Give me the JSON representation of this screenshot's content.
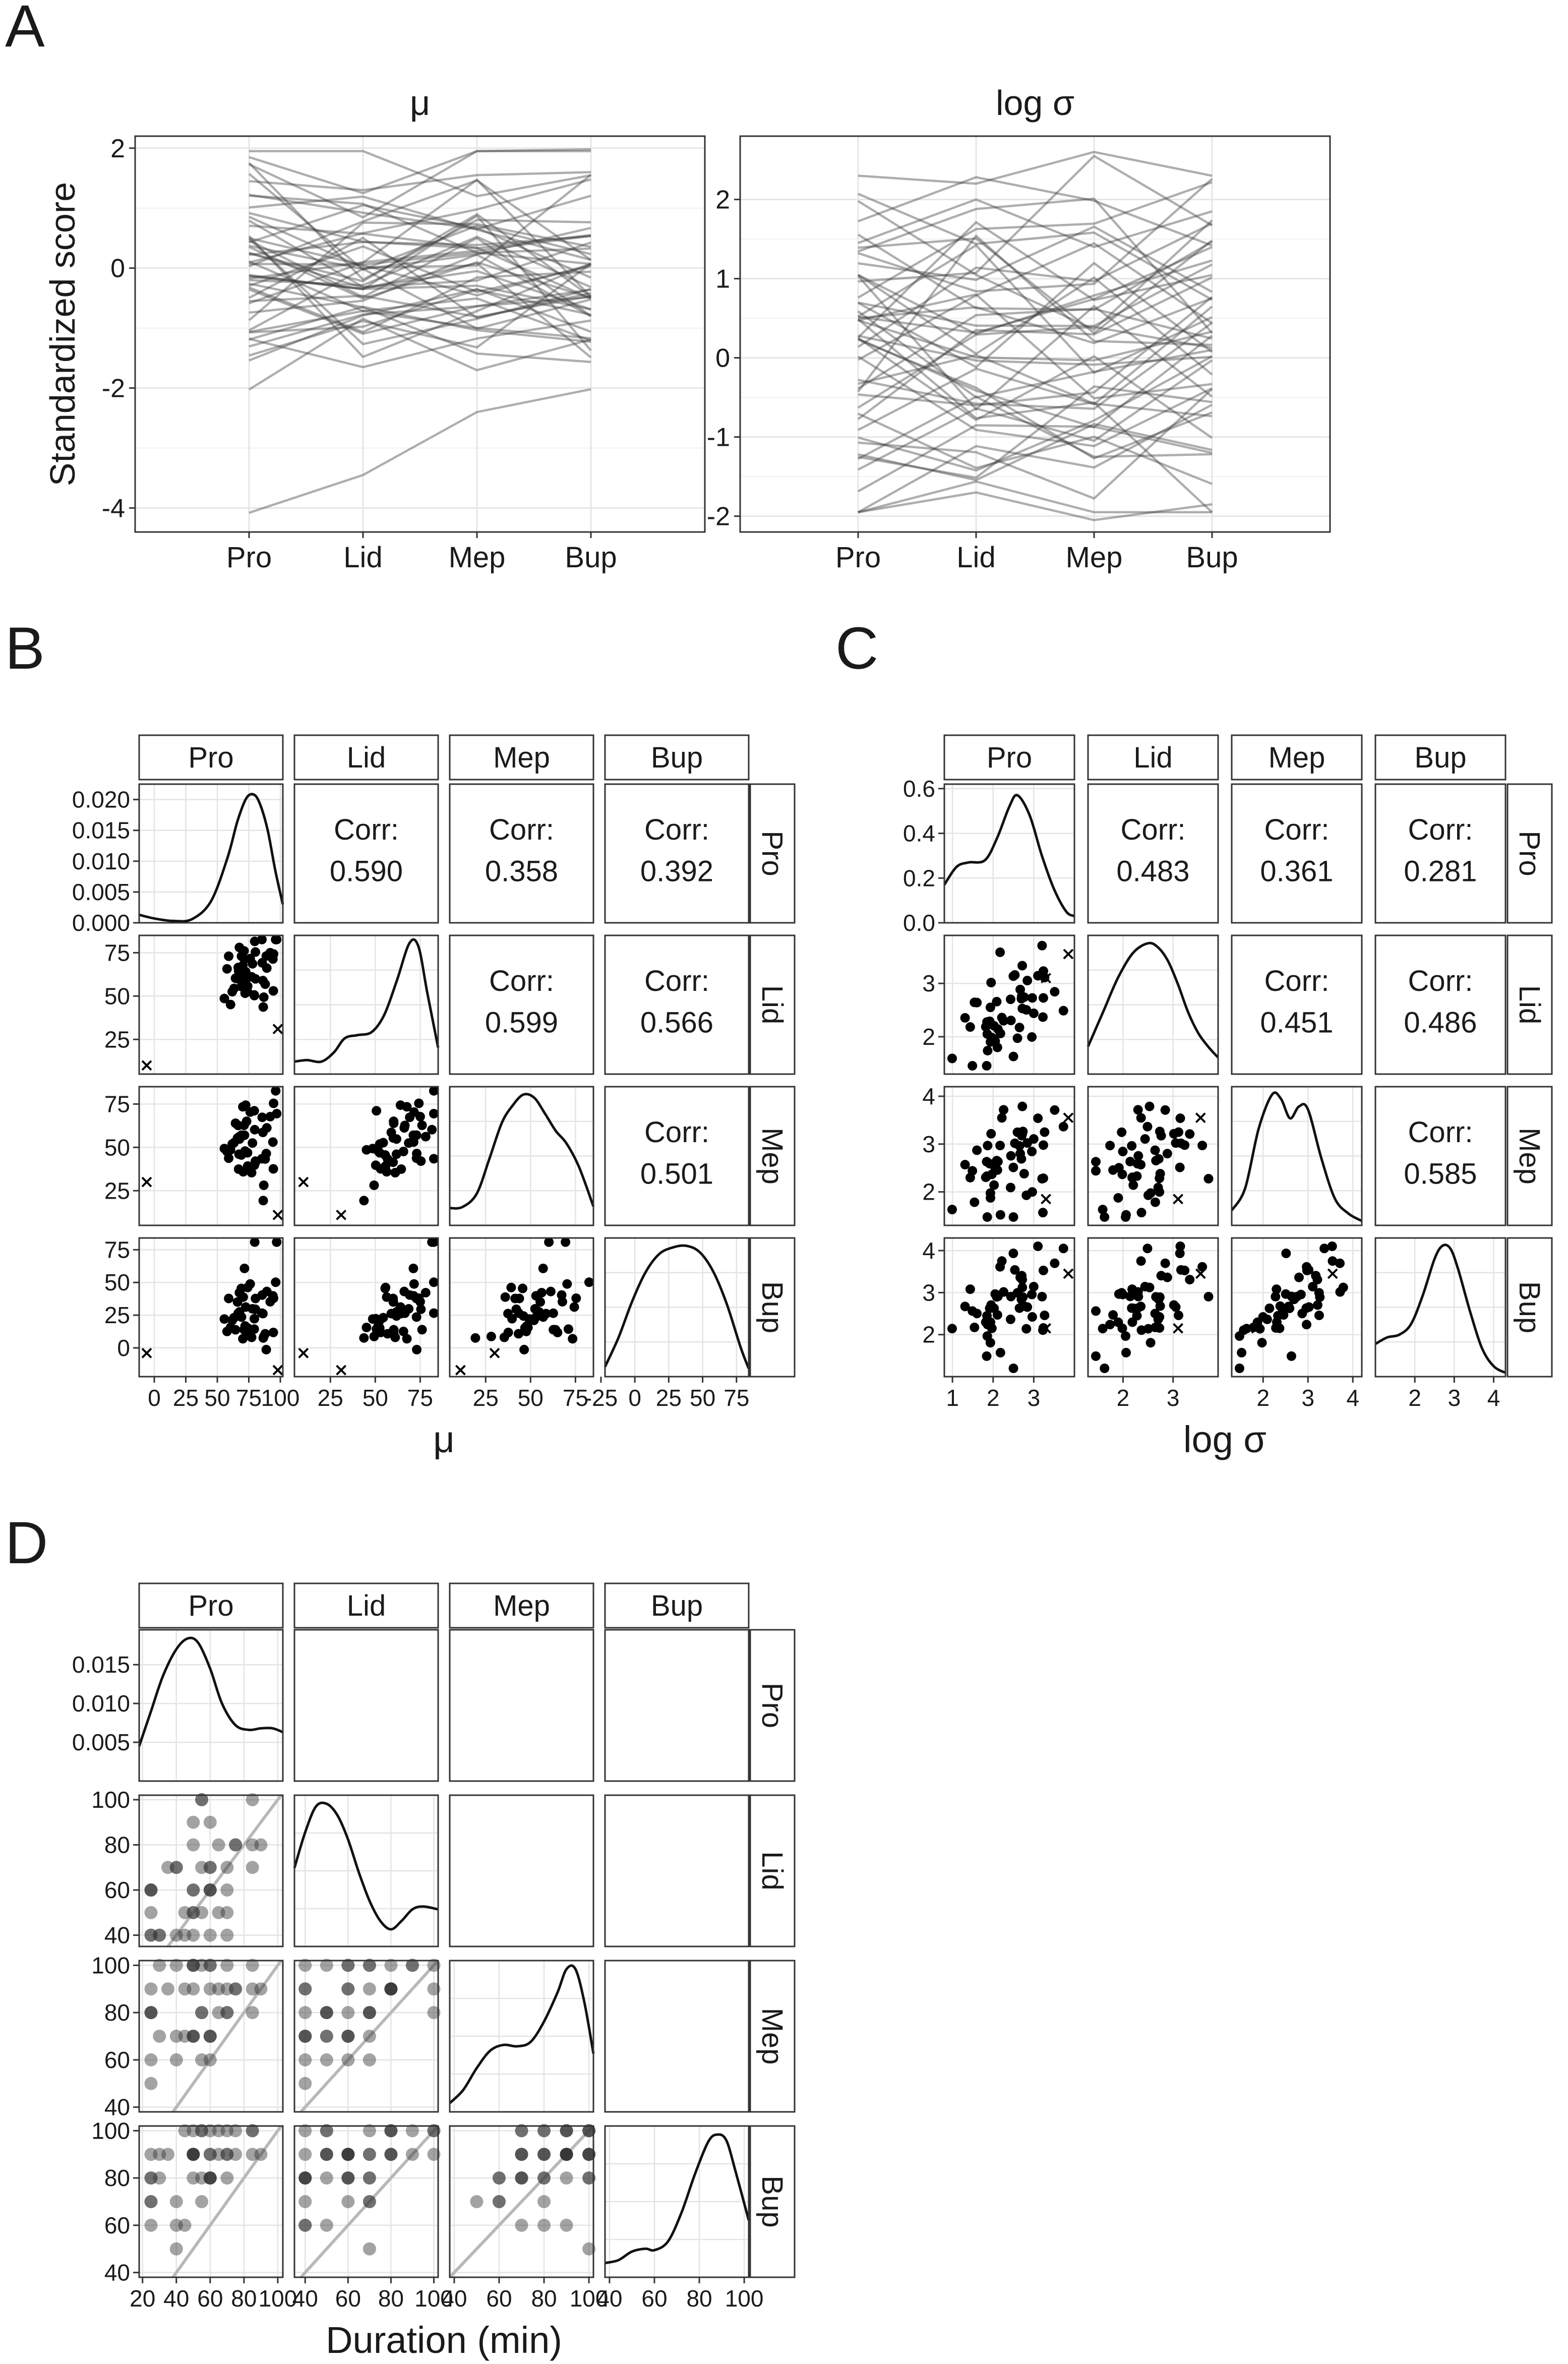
{
  "figure": {
    "panels": [
      {
        "id": "A",
        "label": "A"
      },
      {
        "id": "B",
        "label": "B"
      },
      {
        "id": "C",
        "label": "C"
      },
      {
        "id": "D",
        "label": "D"
      }
    ]
  },
  "chart_data": [
    {
      "id": "A1",
      "type": "line",
      "panel": "A",
      "title": "μ",
      "xlabel": "",
      "ylabel": "Standardized score",
      "categories": [
        "Pro",
        "Lid",
        "Mep",
        "Bup"
      ],
      "ylim": [
        -4.4,
        2.2
      ],
      "yticks": [
        -4,
        -2,
        0,
        2
      ],
      "ytick_labels": [
        "-4",
        "-2",
        "0",
        "2"
      ],
      "series_count": 48,
      "line_color": "#3d3d3d",
      "line_opacity": 0.42,
      "highlight_series": [
        [
          -4.08,
          -3.45,
          -2.4,
          -2.02
        ],
        [
          1.85,
          1.25,
          1.95,
          1.98
        ],
        [
          1.45,
          1.3,
          1.55,
          1.6
        ]
      ],
      "seed": 11
    },
    {
      "id": "A2",
      "type": "line",
      "panel": "A",
      "title": "log σ",
      "xlabel": "",
      "ylabel": "",
      "categories": [
        "Pro",
        "Lid",
        "Mep",
        "Bup"
      ],
      "ylim": [
        -2.2,
        2.8
      ],
      "yticks": [
        -2,
        -1,
        0,
        1,
        2
      ],
      "ytick_labels": [
        "-2",
        "-1",
        "0",
        "1",
        "2"
      ],
      "series_count": 48,
      "line_color": "#3d3d3d",
      "line_opacity": 0.42,
      "highlight_series": [
        [
          2.3,
          2.2,
          2.6,
          2.3
        ],
        [
          -1.95,
          -1.7,
          -2.05,
          -1.85
        ],
        [
          1.45,
          2.0,
          1.4,
          1.85
        ]
      ],
      "seed": 23
    },
    {
      "id": "B",
      "type": "scatter-matrix",
      "panel": "B",
      "xlabel": "μ",
      "variables": [
        "Pro",
        "Lid",
        "Mep",
        "Bup"
      ],
      "ranges": [
        [
          -12,
          102
        ],
        [
          5,
          85
        ],
        [
          5,
          85
        ],
        [
          -22,
          84
        ]
      ],
      "density_ytick_values": [
        0.0,
        0.005,
        0.01,
        0.015,
        0.02
      ],
      "density_ytick_labels": [
        "0.000",
        "0.005",
        "0.010",
        "0.015",
        "0.020"
      ],
      "density_ylim": [
        0,
        0.0225
      ],
      "yticks": [
        [],
        [
          25,
          50,
          75
        ],
        [
          25,
          50,
          75
        ],
        [
          0,
          25,
          50,
          75
        ]
      ],
      "ytick_labels": [
        [],
        [
          "25",
          "50",
          "75"
        ],
        [
          "25",
          "50",
          "75"
        ],
        [
          "0",
          "25",
          "50",
          "75"
        ]
      ],
      "xticks": [
        [
          0,
          25,
          50,
          75,
          100
        ],
        [
          25,
          50,
          75
        ],
        [
          25,
          50,
          75
        ],
        [
          -25,
          0,
          25,
          50,
          75
        ]
      ],
      "xtick_labels": [
        [
          "0",
          "25",
          "50",
          "75",
          "100"
        ],
        [
          "25",
          "50",
          "75"
        ],
        [
          "25",
          "50",
          "75"
        ],
        [
          "-25",
          "0",
          "25",
          "50",
          "75"
        ]
      ],
      "correlations": {
        "1,0": "0.590",
        "2,0": "0.358",
        "3,0": "0.392",
        "2,1": "0.599",
        "3,1": "0.566",
        "3,2": "0.501"
      },
      "corr_label": "Corr:",
      "centers": [
        75,
        62,
        52,
        30
      ],
      "spreads": [
        13,
        13,
        14,
        22
      ],
      "r": [
        [
          1,
          0.59,
          0.358,
          0.392
        ],
        [
          0.59,
          1,
          0.599,
          0.566
        ],
        [
          0.358,
          0.599,
          1,
          0.501
        ],
        [
          0.392,
          0.566,
          0.501,
          1
        ]
      ],
      "outliers": [
        [
          -6,
          10,
          30,
          -4
        ],
        [
          98,
          31,
          11,
          -17
        ]
      ],
      "density_curves": [
        {
          "x": [
            -12,
            0,
            15,
            30,
            45,
            58,
            66,
            73,
            79,
            84,
            90,
            96,
            102
          ],
          "y": [
            0.0013,
            0.0007,
            0.0003,
            0.0006,
            0.0035,
            0.0105,
            0.0165,
            0.0202,
            0.0208,
            0.0192,
            0.015,
            0.0085,
            0.003
          ]
        },
        {
          "x": [
            5,
            12,
            20,
            27,
            33,
            40,
            48,
            55,
            62,
            69,
            74,
            79,
            85
          ],
          "y": [
            0.4,
            0.45,
            0.4,
            0.7,
            1.15,
            1.25,
            1.35,
            1.9,
            3.0,
            4.2,
            4.1,
            2.6,
            0.85
          ]
        },
        {
          "x": [
            5,
            12,
            20,
            27,
            34,
            40,
            46,
            52,
            58,
            64,
            70,
            77,
            85
          ],
          "y": [
            0.55,
            0.58,
            1.0,
            2.1,
            3.25,
            3.8,
            4.15,
            4.05,
            3.55,
            3.0,
            2.6,
            1.85,
            0.6
          ]
        },
        {
          "x": [
            -22,
            -12,
            -2,
            8,
            18,
            28,
            38,
            48,
            58,
            68,
            78,
            84
          ],
          "y": [
            0.3,
            1.2,
            2.3,
            3.2,
            3.75,
            3.95,
            4.0,
            3.8,
            3.2,
            2.2,
            0.9,
            0.25
          ]
        }
      ],
      "seed": 101
    },
    {
      "id": "C",
      "type": "scatter-matrix",
      "panel": "C",
      "xlabel": "log σ",
      "variables": [
        "Pro",
        "Lid",
        "Mep",
        "Bup"
      ],
      "ranges": [
        [
          0.8,
          4.0
        ],
        [
          1.3,
          3.9
        ],
        [
          1.3,
          4.2
        ],
        [
          1.0,
          4.3
        ]
      ],
      "density_ytick_values": [
        0.0,
        0.2,
        0.4,
        0.6
      ],
      "density_ytick_labels": [
        "0.0",
        "0.2",
        "0.4",
        "0.6"
      ],
      "density_ylim": [
        0,
        0.62
      ],
      "yticks": [
        [],
        [
          2,
          3
        ],
        [
          2,
          3,
          4
        ],
        [
          2,
          3,
          4
        ]
      ],
      "ytick_labels": [
        [],
        [
          "2",
          "3"
        ],
        [
          "2",
          "3",
          "4"
        ],
        [
          "2",
          "3",
          "4"
        ]
      ],
      "xticks": [
        [
          1,
          2,
          3
        ],
        [
          2,
          3
        ],
        [
          2,
          3,
          4
        ],
        [
          2,
          3,
          4
        ]
      ],
      "xtick_labels": [
        [
          "1",
          "2",
          "3"
        ],
        [
          "2",
          "3"
        ],
        [
          "2",
          "3",
          "4"
        ],
        [
          "2",
          "3",
          "4"
        ]
      ],
      "correlations": {
        "1,0": "0.483",
        "2,0": "0.361",
        "3,0": "0.281",
        "2,1": "0.451",
        "3,1": "0.486",
        "3,2": "0.585"
      },
      "corr_label": "Corr:",
      "centers": [
        2.4,
        2.4,
        2.6,
        2.7
      ],
      "spreads": [
        0.7,
        0.5,
        0.55,
        0.65
      ],
      "r": [
        [
          1,
          0.483,
          0.361,
          0.281
        ],
        [
          0.483,
          1,
          0.451,
          0.486
        ],
        [
          0.361,
          0.451,
          1,
          0.585
        ],
        [
          0.281,
          0.486,
          0.585,
          1
        ]
      ],
      "outliers": [
        [
          3.85,
          3.55,
          3.55,
          3.45
        ],
        [
          3.3,
          3.1,
          1.85,
          2.15
        ]
      ],
      "density_curves": [
        {
          "x": [
            0.8,
            1.1,
            1.4,
            1.8,
            2.1,
            2.4,
            2.6,
            2.9,
            3.2,
            3.5,
            3.8,
            4.0
          ],
          "y": [
            0.17,
            0.25,
            0.27,
            0.28,
            0.38,
            0.52,
            0.57,
            0.48,
            0.3,
            0.15,
            0.05,
            0.03
          ]
        },
        {
          "x": [
            1.3,
            1.6,
            1.9,
            2.2,
            2.5,
            2.7,
            2.9,
            3.1,
            3.3,
            3.5,
            3.7,
            3.9
          ],
          "y": [
            0.2,
            0.45,
            0.7,
            0.88,
            0.95,
            0.92,
            0.82,
            0.65,
            0.45,
            0.3,
            0.2,
            0.12
          ]
        },
        {
          "x": [
            1.3,
            1.6,
            1.9,
            2.2,
            2.4,
            2.6,
            2.8,
            3.0,
            3.3,
            3.6,
            3.9,
            4.2
          ],
          "y": [
            0.1,
            0.25,
            0.65,
            0.88,
            0.85,
            0.72,
            0.8,
            0.78,
            0.45,
            0.18,
            0.08,
            0.03
          ]
        },
        {
          "x": [
            1.0,
            1.3,
            1.6,
            1.9,
            2.2,
            2.5,
            2.7,
            2.9,
            3.1,
            3.4,
            3.7,
            4.0,
            4.3
          ],
          "y": [
            0.25,
            0.3,
            0.32,
            0.4,
            0.62,
            0.9,
            1.0,
            0.98,
            0.82,
            0.5,
            0.22,
            0.08,
            0.03
          ]
        }
      ],
      "seed": 202
    },
    {
      "id": "D",
      "type": "scatter-matrix",
      "panel": "D",
      "xlabel": "Duration (min)",
      "variables": [
        "Pro",
        "Lid",
        "Mep",
        "Bup"
      ],
      "ranges": [
        [
          18,
          103
        ],
        [
          35,
          102
        ],
        [
          38,
          102
        ],
        [
          38,
          102
        ]
      ],
      "density_ytick_values": [
        0.005,
        0.01,
        0.015
      ],
      "density_ytick_labels": [
        "0.005",
        "0.010",
        "0.015"
      ],
      "density_ylim": [
        0,
        0.0195
      ],
      "yticks": [
        [],
        [
          40,
          60,
          80,
          100
        ],
        [
          40,
          60,
          80,
          100
        ],
        [
          40,
          60,
          80,
          100
        ]
      ],
      "ytick_labels": [
        [],
        [
          "40",
          "60",
          "80",
          "100"
        ],
        [
          "40",
          "60",
          "80",
          "100"
        ],
        [
          "40",
          "60",
          "80",
          "100"
        ]
      ],
      "xticks": [
        [
          20,
          40,
          60,
          80,
          100
        ],
        [
          40,
          60,
          80,
          100
        ],
        [
          40,
          60,
          80,
          100
        ],
        [
          40,
          60,
          80,
          100
        ]
      ],
      "xtick_labels": [
        [
          "20",
          "40",
          "60",
          "80",
          "100"
        ],
        [
          "40",
          "60",
          "80",
          "100"
        ],
        [
          "40",
          "60",
          "80",
          "100"
        ],
        [
          "40",
          "60",
          "80",
          "100"
        ]
      ],
      "correlations": {},
      "point_style": "translucent",
      "reference_line": "identity",
      "point_grid": [
        5,
        10
      ],
      "centers": [
        50,
        60,
        78,
        85
      ],
      "spreads": [
        20,
        20,
        17,
        17
      ],
      "r": [
        [
          1,
          0.6,
          0.5,
          0.5
        ],
        [
          0.6,
          1,
          0.55,
          0.5
        ],
        [
          0.5,
          0.55,
          1,
          0.55
        ],
        [
          0.5,
          0.5,
          0.55,
          1
        ]
      ],
      "density_curves": [
        {
          "x": [
            18,
            25,
            32,
            40,
            47,
            53,
            60,
            67,
            75,
            83,
            90,
            97,
            103
          ],
          "y": [
            0.0045,
            0.009,
            0.0135,
            0.017,
            0.0184,
            0.0178,
            0.0145,
            0.01,
            0.0072,
            0.0066,
            0.0068,
            0.0068,
            0.0063
          ]
        },
        {
          "x": [
            35,
            40,
            45,
            50,
            55,
            60,
            65,
            70,
            75,
            80,
            85,
            90,
            95,
            102
          ],
          "y": [
            0.55,
            0.8,
            0.98,
            1.0,
            0.92,
            0.75,
            0.52,
            0.32,
            0.18,
            0.12,
            0.18,
            0.26,
            0.28,
            0.26
          ]
        },
        {
          "x": [
            38,
            44,
            50,
            56,
            62,
            68,
            74,
            80,
            86,
            90,
            94,
            98,
            102
          ],
          "y": [
            0.06,
            0.15,
            0.3,
            0.42,
            0.46,
            0.45,
            0.48,
            0.62,
            0.82,
            0.98,
            0.98,
            0.75,
            0.4
          ]
        },
        {
          "x": [
            38,
            44,
            50,
            56,
            60,
            66,
            72,
            78,
            84,
            88,
            92,
            96,
            102
          ],
          "y": [
            0.1,
            0.12,
            0.18,
            0.2,
            0.19,
            0.25,
            0.45,
            0.72,
            0.95,
            1.0,
            0.96,
            0.75,
            0.4
          ]
        }
      ],
      "seed": 303
    }
  ]
}
